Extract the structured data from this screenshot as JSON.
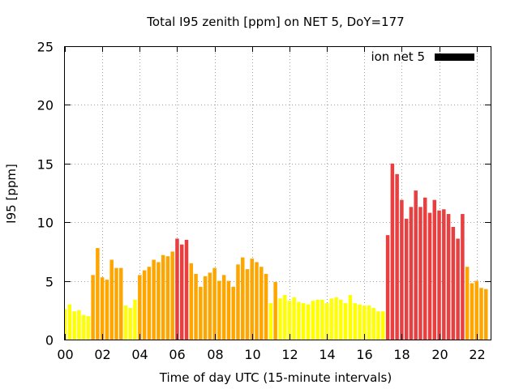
{
  "chart_data": {
    "type": "bar",
    "title": "Total I95 zenith [ppm] on NET 5, DoY=177",
    "xlabel": "Time of day UTC (15-minute intervals)",
    "ylabel": "I95 [ppm]",
    "ylim": [
      0,
      25
    ],
    "yticks": [
      "0",
      "5",
      "10",
      "15",
      "20",
      "25"
    ],
    "xlim": [
      0,
      22.75
    ],
    "xticks": [
      "00",
      "02",
      "04",
      "06",
      "08",
      "10",
      "12",
      "14",
      "16",
      "18",
      "20",
      "22"
    ],
    "grid": true,
    "legend": {
      "label": "ion net 5",
      "position": "top-right",
      "color": "#000000"
    },
    "bar_interval_hours": 0.25,
    "colors": {
      "low": "#ffff00",
      "medium": "#ffa500",
      "high": "#e84040"
    },
    "values": [
      2.6,
      3.0,
      2.4,
      2.5,
      2.1,
      2.0,
      5.5,
      7.8,
      5.3,
      5.1,
      6.8,
      6.1,
      6.1,
      2.9,
      2.7,
      3.4,
      5.5,
      5.9,
      6.2,
      6.8,
      6.6,
      7.2,
      7.1,
      7.5,
      8.6,
      8.1,
      8.5,
      6.5,
      5.6,
      4.5,
      5.4,
      5.7,
      6.1,
      5.0,
      5.5,
      5.0,
      4.5,
      6.4,
      7.0,
      6.0,
      6.9,
      6.6,
      6.2,
      5.6,
      3.1,
      4.9,
      3.5,
      3.8,
      3.3,
      3.6,
      3.2,
      3.1,
      3.0,
      3.3,
      3.4,
      3.4,
      3.1,
      3.5,
      3.6,
      3.4,
      3.1,
      3.8,
      3.1,
      3.0,
      2.9,
      2.9,
      2.7,
      2.4,
      2.4,
      8.9,
      15.0,
      14.1,
      11.9,
      10.3,
      11.3,
      12.7,
      11.3,
      12.1,
      10.8,
      11.9,
      11.0,
      11.1,
      10.7,
      9.6,
      8.6,
      10.7,
      6.2,
      4.8,
      5.0,
      4.4,
      4.3
    ],
    "levels": [
      "low",
      "low",
      "low",
      "low",
      "low",
      "low",
      "medium",
      "medium",
      "medium",
      "medium",
      "medium",
      "medium",
      "medium",
      "low",
      "low",
      "low",
      "medium",
      "medium",
      "medium",
      "medium",
      "medium",
      "medium",
      "medium",
      "medium",
      "high",
      "high",
      "high",
      "medium",
      "medium",
      "medium",
      "medium",
      "medium",
      "medium",
      "medium",
      "medium",
      "medium",
      "medium",
      "medium",
      "medium",
      "medium",
      "medium",
      "medium",
      "medium",
      "medium",
      "low",
      "medium",
      "low",
      "low",
      "low",
      "low",
      "low",
      "low",
      "low",
      "low",
      "low",
      "low",
      "low",
      "low",
      "low",
      "low",
      "low",
      "low",
      "low",
      "low",
      "low",
      "low",
      "low",
      "low",
      "low",
      "high",
      "high",
      "high",
      "high",
      "high",
      "high",
      "high",
      "high",
      "high",
      "high",
      "high",
      "high",
      "high",
      "high",
      "high",
      "high",
      "high",
      "medium",
      "medium",
      "medium",
      "medium",
      "medium"
    ]
  }
}
